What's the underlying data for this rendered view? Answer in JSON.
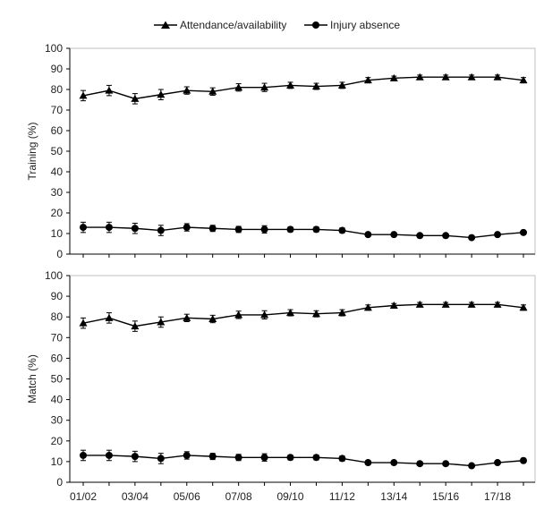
{
  "legend": {
    "items": [
      {
        "label": "Attendance/availability",
        "marker": "triangle"
      },
      {
        "label": "Injury absence",
        "marker": "circle"
      }
    ]
  },
  "x_tick_labels": [
    "01/02",
    "03/04",
    "05/06",
    "07/08",
    "09/10",
    "11/12",
    "13/14",
    "15/16",
    "17/18"
  ],
  "chart_data": [
    {
      "type": "line",
      "ylabel": "Training (%)",
      "xlabel": "",
      "ylim": [
        0,
        100
      ],
      "yticks": [
        0,
        10,
        20,
        30,
        40,
        50,
        60,
        70,
        80,
        90,
        100
      ],
      "x": [
        "01/02",
        "02/03",
        "03/04",
        "04/05",
        "05/06",
        "06/07",
        "07/08",
        "08/09",
        "09/10",
        "10/11",
        "11/12",
        "12/13",
        "13/14",
        "14/15",
        "15/16",
        "16/17",
        "17/18",
        "18/19"
      ],
      "series": [
        {
          "name": "Attendance/availability",
          "marker": "triangle",
          "values": [
            77,
            79.5,
            75.5,
            77.5,
            79.5,
            79,
            81,
            81,
            82,
            81.5,
            82,
            84.5,
            85.5,
            86,
            86,
            86,
            86,
            84.5
          ],
          "error": [
            2.5,
            2.5,
            2.5,
            2.5,
            1.8,
            1.8,
            1.8,
            2,
            1.5,
            1.5,
            1.5,
            1.3,
            1,
            1,
            1,
            1,
            1,
            1.3
          ]
        },
        {
          "name": "Injury absence",
          "marker": "circle",
          "values": [
            13,
            13,
            12.5,
            11.5,
            13,
            12.5,
            12,
            12,
            12,
            12,
            11.5,
            9.5,
            9.5,
            9,
            9,
            8,
            9.5,
            10.5
          ],
          "error": [
            2.5,
            2.5,
            2.5,
            2.5,
            1.8,
            1.5,
            1.5,
            1.8,
            1.2,
            1.2,
            1.2,
            1,
            0.8,
            0.8,
            0.8,
            0.8,
            0.8,
            1
          ]
        }
      ]
    },
    {
      "type": "line",
      "ylabel": "Match (%)",
      "xlabel": "",
      "ylim": [
        0,
        100
      ],
      "yticks": [
        0,
        10,
        20,
        30,
        40,
        50,
        60,
        70,
        80,
        90,
        100
      ],
      "x": [
        "01/02",
        "02/03",
        "03/04",
        "04/05",
        "05/06",
        "06/07",
        "07/08",
        "08/09",
        "09/10",
        "10/11",
        "11/12",
        "12/13",
        "13/14",
        "14/15",
        "15/16",
        "16/17",
        "17/18",
        "18/19"
      ],
      "series": [
        {
          "name": "Attendance/availability",
          "marker": "triangle",
          "values": [
            77,
            79.5,
            75.5,
            77.5,
            79.5,
            79,
            81,
            81,
            82,
            81.5,
            82,
            84.5,
            85.5,
            86,
            86,
            86,
            86,
            84.5
          ],
          "error": [
            2.5,
            2.5,
            2.5,
            2.5,
            1.8,
            1.8,
            1.8,
            2,
            1.5,
            1.5,
            1.5,
            1.3,
            1,
            1,
            1,
            1,
            1,
            1.3
          ]
        },
        {
          "name": "Injury absence",
          "marker": "circle",
          "values": [
            13,
            13,
            12.5,
            11.5,
            13,
            12.5,
            12,
            12,
            12,
            12,
            11.5,
            9.5,
            9.5,
            9,
            9,
            8,
            9.5,
            10.5
          ],
          "error": [
            2.5,
            2.5,
            2.5,
            2.5,
            1.8,
            1.5,
            1.5,
            1.8,
            1.2,
            1.2,
            1.2,
            1,
            0.8,
            0.8,
            0.8,
            0.8,
            0.8,
            1
          ]
        }
      ]
    }
  ]
}
